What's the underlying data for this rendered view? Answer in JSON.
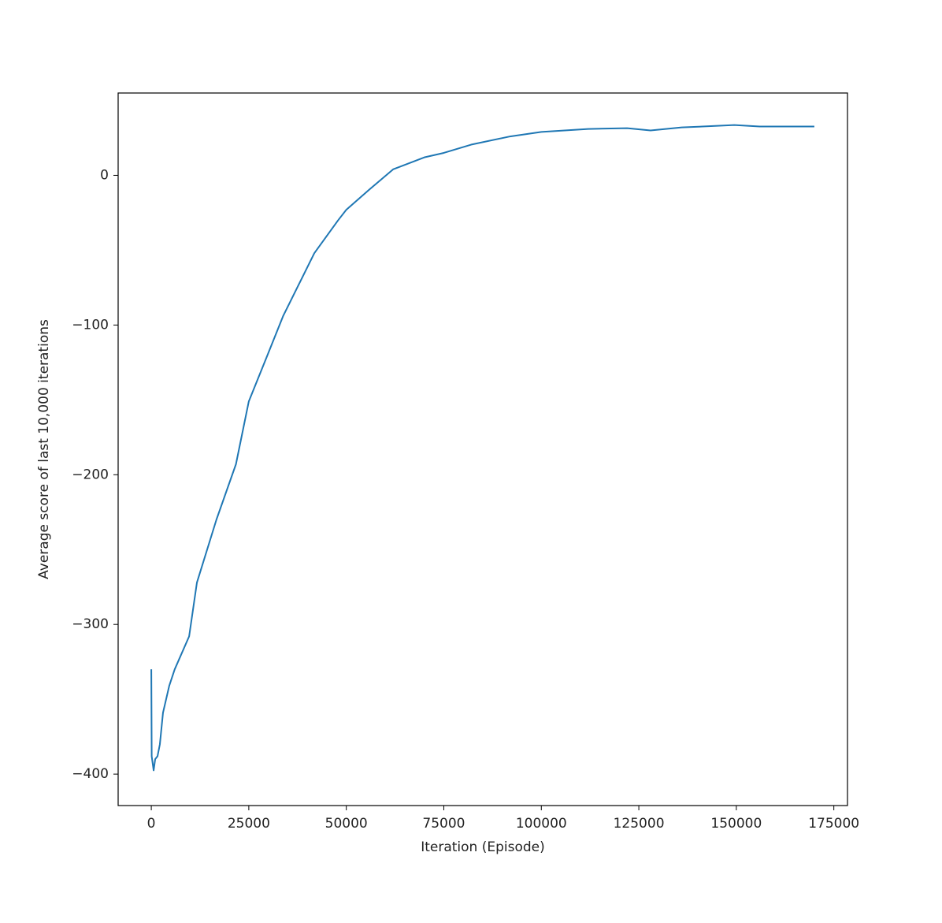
{
  "chart_data": {
    "type": "line",
    "xlabel": "Iteration (Episode)",
    "ylabel": "Average score of last 10,000 iterations",
    "x": [
      0,
      100,
      600,
      1000,
      1600,
      2200,
      3000,
      4600,
      6000,
      9700,
      11700,
      16700,
      21700,
      25000,
      29800,
      33800,
      37800,
      41800,
      47900,
      50000,
      55900,
      62000,
      70000,
      75000,
      82000,
      92000,
      100000,
      112000,
      122000,
      128000,
      136000,
      149500,
      156000,
      170000
    ],
    "values": [
      -330,
      -388,
      -397.5,
      -390,
      -388,
      -380,
      -359,
      -341,
      -330,
      -308,
      -272,
      -230,
      -193,
      -151,
      -120,
      -94,
      -73,
      -52,
      -30,
      -23,
      -9.5,
      4,
      12,
      15,
      20.5,
      26,
      29,
      31,
      31.5,
      30,
      32,
      33.6,
      32.6,
      32.6
    ],
    "color": "#1f77b4",
    "xlim": [
      -8500,
      178500
    ],
    "ylim": [
      -421,
      55
    ],
    "xticks": [
      0,
      25000,
      50000,
      75000,
      100000,
      125000,
      150000,
      175000
    ],
    "yticks": [
      {
        "value": -400,
        "label": "−400"
      },
      {
        "value": -300,
        "label": "−300"
      },
      {
        "value": -200,
        "label": "−200"
      },
      {
        "value": -100,
        "label": "−100"
      },
      0
    ],
    "grid": false
  }
}
